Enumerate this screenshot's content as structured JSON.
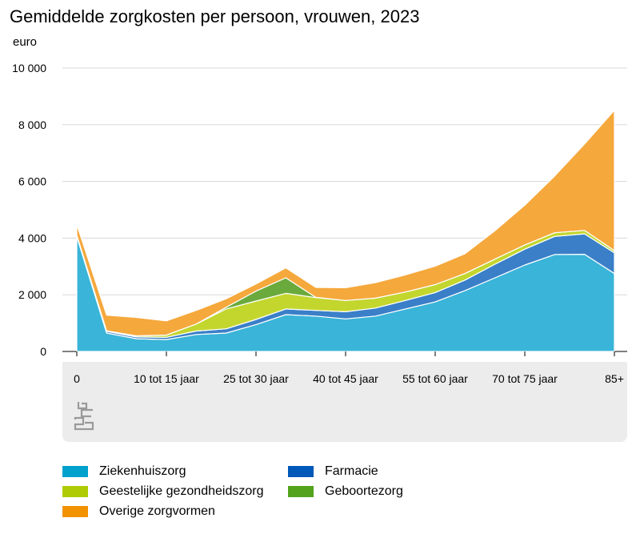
{
  "title": "Gemiddelde zorgkosten per persoon, vrouwen, 2023",
  "unit": "euro",
  "chart_data": {
    "type": "area",
    "stacked": true,
    "title": "Gemiddelde zorgkosten per persoon, vrouwen, 2023",
    "ylabel": "euro",
    "ylim": [
      0,
      10000
    ],
    "yticks": [
      0,
      2000,
      4000,
      6000,
      8000,
      10000
    ],
    "ytick_labels": [
      "0",
      "2 000",
      "4 000",
      "6 000",
      "8 000",
      "10 000"
    ],
    "grid": true,
    "legend_position": "bottom",
    "x_tick_labels": [
      "0",
      "10 tot 15 jaar",
      "25 tot 30 jaar",
      "40 tot 45 jaar",
      "55 tot 60 jaar",
      "70 tot 75 jaar",
      "85+"
    ],
    "x_tick_index": [
      0,
      3,
      6,
      9,
      12,
      15,
      18
    ],
    "n_points": 19,
    "series": [
      {
        "name": "Ziekenhuiszorg",
        "color": "#3ab4d8",
        "values": [
          4050,
          650,
          450,
          420,
          600,
          650,
          950,
          1300,
          1250,
          1150,
          1250,
          1500,
          1750,
          2150,
          2600,
          3050,
          3420,
          3430,
          2750
        ]
      },
      {
        "name": "Farmacie",
        "color": "#3a7fc8",
        "values": [
          50,
          60,
          60,
          80,
          120,
          150,
          180,
          200,
          200,
          250,
          280,
          300,
          330,
          370,
          480,
          560,
          640,
          720,
          730
        ]
      },
      {
        "name": "Geestelijke gezondheidszorg",
        "color": "#c2d62e",
        "values": [
          10,
          20,
          40,
          80,
          250,
          700,
          650,
          550,
          450,
          400,
          350,
          300,
          280,
          230,
          180,
          150,
          130,
          120,
          80
        ]
      },
      {
        "name": "Geboortezorg",
        "color": "#6aaa3c",
        "values": [
          0,
          0,
          0,
          0,
          0,
          60,
          350,
          550,
          10,
          0,
          0,
          0,
          0,
          0,
          0,
          0,
          0,
          0,
          0
        ]
      },
      {
        "name": "Overige zorgvormen",
        "color": "#f5a83c",
        "values": [
          370,
          550,
          650,
          500,
          480,
          300,
          250,
          350,
          350,
          450,
          550,
          600,
          650,
          700,
          1000,
          1400,
          2000,
          3050,
          4950
        ]
      }
    ]
  },
  "legend": [
    {
      "label": "Ziekenhuiszorg",
      "color": "#00a1cd"
    },
    {
      "label": "Farmacie",
      "color": "#0058b8"
    },
    {
      "label": "Geestelijke gezondheidszorg",
      "color": "#afcb05"
    },
    {
      "label": "Geboortezorg",
      "color": "#53a31d"
    },
    {
      "label": "Overige zorgvormen",
      "color": "#f39200"
    }
  ],
  "logo": {
    "icon": "cbs-logo-icon"
  }
}
